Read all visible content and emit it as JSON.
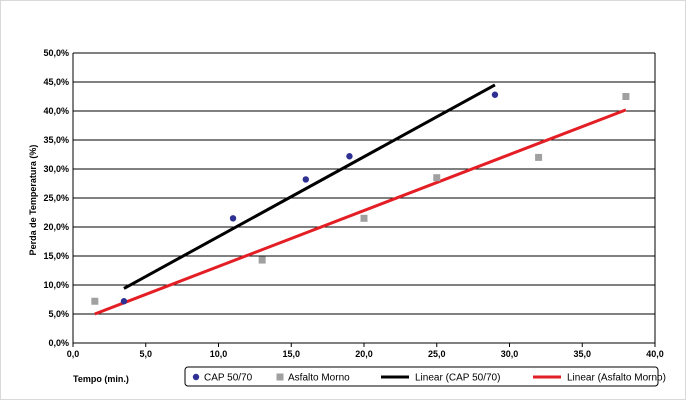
{
  "chart_data": {
    "type": "scatter",
    "title": "",
    "xlabel": "Tempo (min.)",
    "ylabel": "Perda de Temperatura (%)",
    "xlim": [
      0,
      40
    ],
    "ylim": [
      0,
      50
    ],
    "x_ticks": [
      "0,0",
      "5,0",
      "10,0",
      "15,0",
      "20,0",
      "25,0",
      "30,0",
      "35,0",
      "40,0"
    ],
    "y_ticks": [
      "0,0%",
      "5,0%",
      "10,0%",
      "15,0%",
      "20,0%",
      "25,0%",
      "30,0%",
      "35,0%",
      "40,0%",
      "45,0%",
      "50,0%"
    ],
    "grid": "horizontal",
    "legend_position": "bottom",
    "series": [
      {
        "name": "CAP 50/70",
        "kind": "scatter",
        "marker": "circle",
        "color": "#2e3192",
        "points": [
          [
            3.5,
            7.2
          ],
          [
            11.0,
            21.5
          ],
          [
            16.0,
            28.2
          ],
          [
            19.0,
            32.2
          ],
          [
            29.0,
            42.8
          ]
        ]
      },
      {
        "name": "Asfalto Morno",
        "kind": "scatter",
        "marker": "square",
        "color": "#a0a0a0",
        "points": [
          [
            1.5,
            7.2
          ],
          [
            13.0,
            14.3
          ],
          [
            20.0,
            21.5
          ],
          [
            25.0,
            28.5
          ],
          [
            32.0,
            32.0
          ],
          [
            38.0,
            42.5
          ]
        ]
      },
      {
        "name": "Linear (CAP 50/70)",
        "kind": "line",
        "color": "#000000",
        "points": [
          [
            3.5,
            9.4
          ],
          [
            29.0,
            44.5
          ]
        ]
      },
      {
        "name": "Linear (Asfalto Morno)",
        "kind": "line",
        "color": "#e31e24",
        "points": [
          [
            1.5,
            5.0
          ],
          [
            38.0,
            40.2
          ]
        ]
      }
    ]
  }
}
